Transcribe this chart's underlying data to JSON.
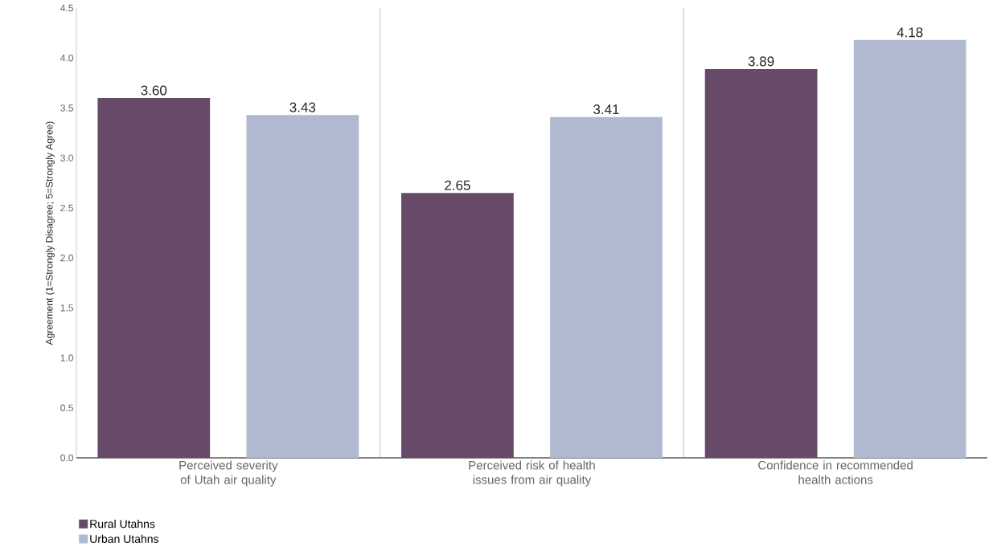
{
  "chart_data": {
    "type": "bar",
    "ylabel": "Agreement (1=Strongly Disagree; 5=Strongly Agree)",
    "categories": [
      "Perceived severity of Utah air quality",
      "Perceived risk of health issues from air quality",
      "Confidence in recommended health actions"
    ],
    "series": [
      {
        "name": "Rural Utahns",
        "color": "#664a68",
        "values": [
          3.6,
          2.65,
          3.89
        ],
        "value_labels": [
          "3.60",
          "2.65",
          "3.89"
        ]
      },
      {
        "name": "Urban Utahns",
        "color": "#b0b9cf",
        "values": [
          3.43,
          3.41,
          4.18
        ],
        "value_labels": [
          "3.43",
          "3.41",
          "4.18"
        ]
      }
    ],
    "ylim": [
      0,
      4.5
    ],
    "yticks": [
      {
        "value": 0,
        "label": "0.0"
      },
      {
        "value": 0.5,
        "label": "0.5"
      },
      {
        "value": 1,
        "label": "1.0"
      },
      {
        "value": 1.5,
        "label": "1.5"
      },
      {
        "value": 2,
        "label": "2.0"
      },
      {
        "value": 2.5,
        "label": "2.5"
      },
      {
        "value": 3,
        "label": "3.0"
      },
      {
        "value": 3.5,
        "label": "3.5"
      },
      {
        "value": 4,
        "label": "4.0"
      },
      {
        "value": 4.5,
        "label": "4.5"
      }
    ],
    "grid": "x",
    "legend": "bottom left"
  }
}
